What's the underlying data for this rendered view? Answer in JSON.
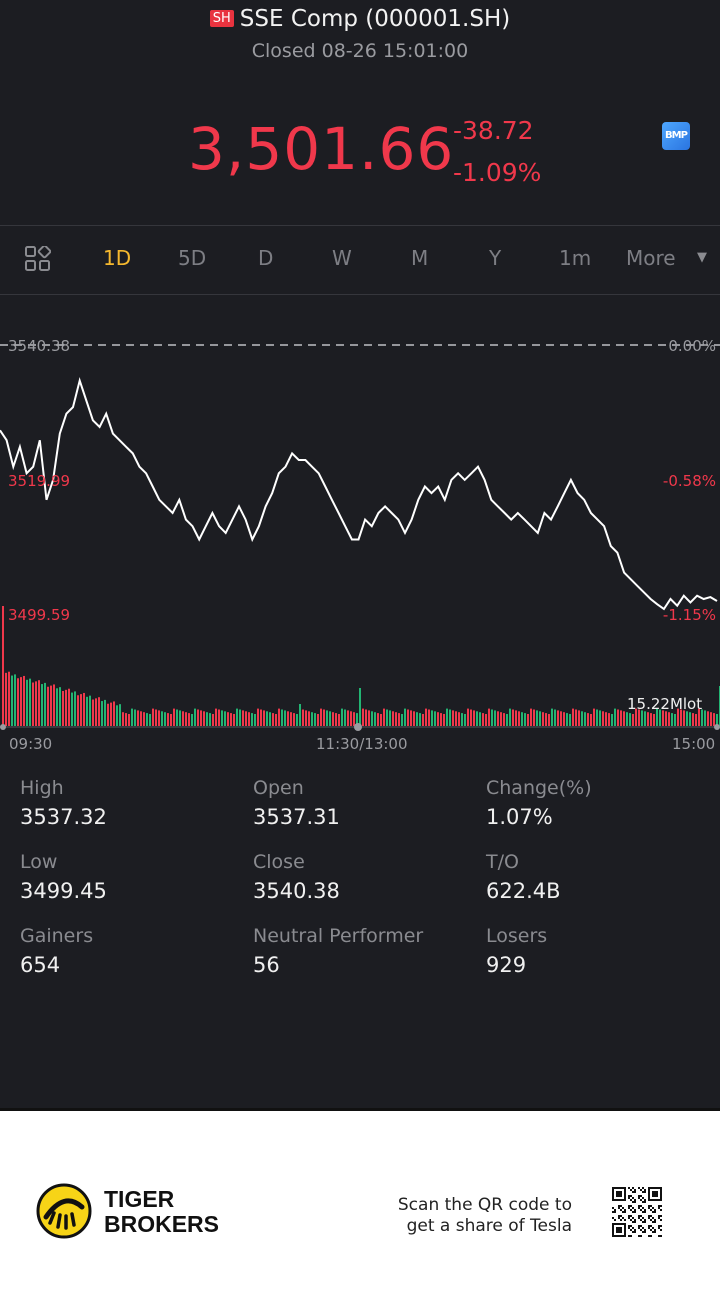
{
  "header": {
    "exchange_badge": "SH",
    "title": "SSE Comp (000001.SH)",
    "status": "Closed 08-26 15:01:00",
    "price": "3,501.66",
    "change": "-38.72",
    "change_pct": "-1.09%",
    "bmp_label": "BMP"
  },
  "tabs": {
    "items": [
      "1D",
      "5D",
      "D",
      "W",
      "M",
      "Y",
      "1m",
      "More"
    ],
    "active": "1D"
  },
  "chart_data": {
    "type": "line",
    "title": "",
    "x_ticks": [
      "09:30",
      "11:30/13:00",
      "15:00"
    ],
    "y_left_ticks": [
      "3540.38",
      "3519.99",
      "3499.59"
    ],
    "y_right_ticks": [
      "0.00%",
      "-0.58%",
      "-1.15%"
    ],
    "prev_close": 3540.38,
    "ylim": [
      3499.59,
      3540.38
    ],
    "volume_label": "15.22Mlot",
    "grid": false,
    "series": [
      {
        "values": [
          3527.5,
          3526,
          3522,
          3525,
          3521,
          3522,
          3526,
          3517,
          3520,
          3527,
          3530,
          3531,
          3535,
          3532,
          3529,
          3528,
          3530,
          3527,
          3526,
          3525,
          3524,
          3522,
          3521,
          3519,
          3517,
          3516,
          3515,
          3517,
          3514,
          3513,
          3511,
          3513,
          3515,
          3513,
          3512,
          3514,
          3516,
          3514,
          3511,
          3513,
          3516,
          3518,
          3521,
          3522,
          3524,
          3523,
          3523,
          3522,
          3521,
          3519,
          3517,
          3515,
          3513,
          3511,
          3511,
          3514,
          3513,
          3515,
          3516,
          3515,
          3514,
          3512,
          3514,
          3517,
          3519,
          3518,
          3519,
          3517,
          3520,
          3521,
          3520,
          3521,
          3522,
          3520,
          3517,
          3516,
          3515,
          3514,
          3515,
          3514,
          3513,
          3512,
          3515,
          3514,
          3516,
          3518,
          3520,
          3518,
          3517,
          3515,
          3514,
          3513,
          3510,
          3509,
          3506,
          3505,
          3504,
          3503,
          3502,
          3501.2,
          3500.5,
          3502,
          3501,
          3502.5,
          3501.5,
          3502.5,
          3502,
          3502.3,
          3501.7
        ]
      }
    ]
  },
  "stats": {
    "high_label": "High",
    "high_value": "3537.32",
    "open_label": "Open",
    "open_value": "3537.31",
    "changepct_label": "Change(%)",
    "changepct_value": "1.07%",
    "low_label": "Low",
    "low_value": "3499.45",
    "close_label": "Close",
    "close_value": "3540.38",
    "to_label": "T/O",
    "to_value": "622.4B",
    "gainers_label": "Gainers",
    "gainers_value": "654",
    "neutral_label": "Neutral Performer",
    "neutral_value": "56",
    "losers_label": "Losers",
    "losers_value": "929"
  },
  "footer": {
    "brand_line1": "TIGER",
    "brand_line2": "BROKERS",
    "qr_line1": "Scan the QR code to",
    "qr_line2": "get a share of Tesla"
  },
  "colors": {
    "up": "#f0384b",
    "down": "#22b573",
    "accent": "#f5b82e",
    "background": "#1c1d22"
  }
}
